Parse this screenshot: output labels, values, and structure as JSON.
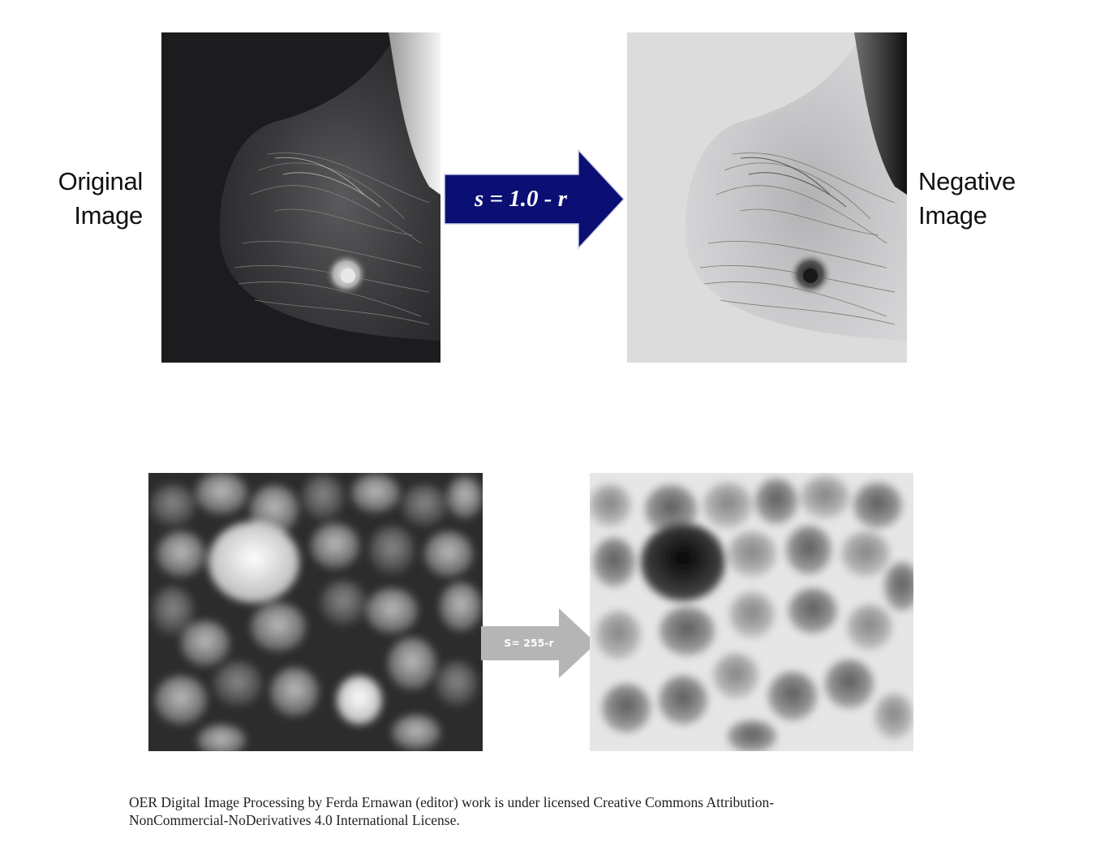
{
  "top_row": {
    "left_label": [
      "Original",
      "Image"
    ],
    "right_label": [
      "Negative",
      "Image"
    ],
    "transform_label": "s = 1.0 - r",
    "arrow_color": "#0b0f74"
  },
  "bottom_row": {
    "transform_label": "S= 255-r",
    "arrow_color": "#b5b5b5"
  },
  "footer": {
    "license_lines": [
      "OER Digital Image Processing by Ferda Ernawan (editor) work is under licensed Creative Commons Attribution-",
      "NonCommercial-NoDerivatives 4.0 International License."
    ]
  }
}
